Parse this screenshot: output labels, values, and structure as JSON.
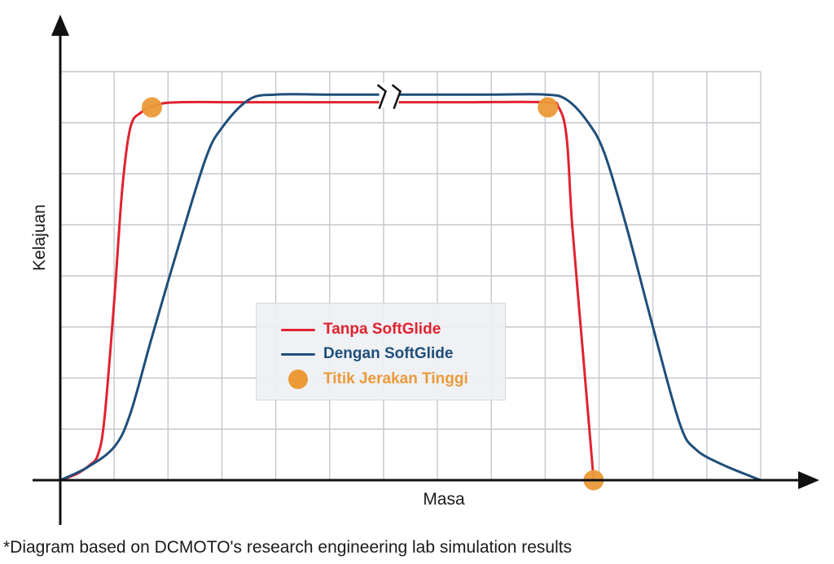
{
  "chart_data": {
    "type": "line",
    "xlabel": "Masa",
    "ylabel": "Kelajuan",
    "x_axis_break": true,
    "grid": true,
    "xlim": [
      0,
      13
    ],
    "ylim": [
      0,
      8
    ],
    "series": [
      {
        "name": "Tanpa SoftGlide",
        "color": "#e0232f",
        "points": [
          [
            0,
            0
          ],
          [
            0.3,
            0.12
          ],
          [
            0.55,
            0.3
          ],
          [
            0.7,
            0.5
          ],
          [
            0.82,
            1.2
          ],
          [
            1.0,
            3.5
          ],
          [
            1.15,
            5.7
          ],
          [
            1.3,
            6.9
          ],
          [
            1.5,
            7.2
          ],
          [
            1.8,
            7.35
          ],
          [
            2.2,
            7.4
          ],
          [
            3.5,
            7.4
          ],
          [
            6.0,
            7.4
          ],
          [
            7.5,
            7.4
          ],
          [
            9.0,
            7.4
          ],
          [
            9.25,
            7.3
          ],
          [
            9.4,
            6.7
          ],
          [
            9.5,
            5.0
          ],
          [
            9.7,
            2.5
          ],
          [
            9.9,
            0
          ]
        ]
      },
      {
        "name": "Dengan SoftGlide",
        "color": "#1f4e79",
        "points": [
          [
            0,
            0
          ],
          [
            0.5,
            0.25
          ],
          [
            1.0,
            0.65
          ],
          [
            1.3,
            1.3
          ],
          [
            1.7,
            2.8
          ],
          [
            2.2,
            4.6
          ],
          [
            2.7,
            6.3
          ],
          [
            3.0,
            6.9
          ],
          [
            3.5,
            7.45
          ],
          [
            4.0,
            7.55
          ],
          [
            5.0,
            7.55
          ],
          [
            6.0,
            7.55
          ],
          [
            8.0,
            7.55
          ],
          [
            9.0,
            7.55
          ],
          [
            9.4,
            7.45
          ],
          [
            9.8,
            7.0
          ],
          [
            10.1,
            6.4
          ],
          [
            10.5,
            5.0
          ],
          [
            11.0,
            3.0
          ],
          [
            11.5,
            1.1
          ],
          [
            11.8,
            0.6
          ],
          [
            12.3,
            0.3
          ],
          [
            13.0,
            0
          ]
        ]
      }
    ],
    "markers": {
      "name": "Titik Jerakan Tinggi",
      "color": "#eb9a38",
      "points": [
        [
          1.7,
          7.3
        ],
        [
          9.05,
          7.3
        ],
        [
          9.9,
          0
        ]
      ]
    }
  },
  "legend": {
    "items": [
      {
        "label": "Tanpa SoftGlide",
        "color": "#e0232f",
        "kind": "line"
      },
      {
        "label": "Dengan SoftGlide",
        "color": "#1f4e79",
        "kind": "line"
      },
      {
        "label": "Titik Jerakan Tinggi",
        "color": "#eb9a38",
        "kind": "dot"
      }
    ]
  },
  "footnote": "*Diagram based on DCMOTO's research engineering lab simulation results"
}
